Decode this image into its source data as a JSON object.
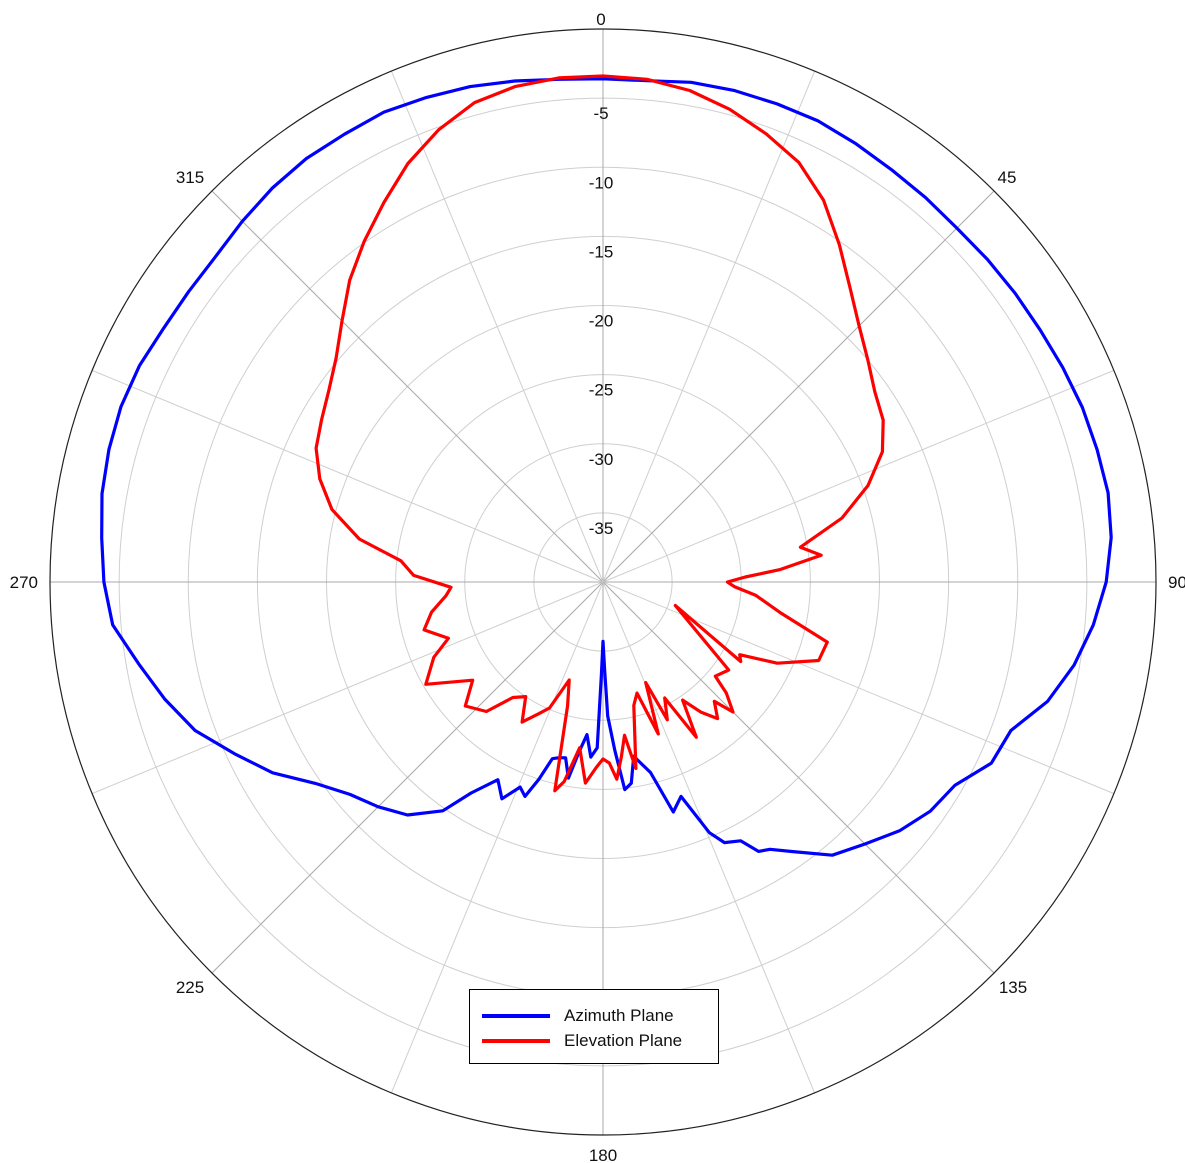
{
  "chart_data": {
    "type": "polar-line",
    "title": "",
    "radial_axis": {
      "unit": "",
      "min": -40,
      "max": 0,
      "ticks": [
        0,
        -5,
        -10,
        -15,
        -20,
        -25,
        -30,
        -35
      ],
      "tick_labels": [
        "0",
        "-5",
        "-10",
        "-15",
        "-20",
        "-25",
        "-30",
        "-35"
      ]
    },
    "angular_axis": {
      "direction": "clockwise",
      "zero_at": "top",
      "labels": [
        "0",
        "45",
        "90",
        "135",
        "180",
        "225",
        "270",
        "315"
      ],
      "angles": [
        0,
        45,
        90,
        135,
        180,
        225,
        270,
        315
      ],
      "spokes_every_deg": 22.5
    },
    "grid": true,
    "legend": {
      "position": "bottom-center",
      "entries": [
        "Azimuth Plane",
        "Elevation Plane"
      ]
    },
    "series": [
      {
        "name": "Azimuth Plane",
        "color": "#0000ff",
        "points": [
          [
            0,
            -3.6
          ],
          [
            5,
            -3.6
          ],
          [
            10,
            -3.3
          ],
          [
            15,
            -3.2
          ],
          [
            20,
            -3.2
          ],
          [
            25,
            -3.2
          ],
          [
            30,
            -3.4
          ],
          [
            35,
            -3.6
          ],
          [
            40,
            -3.7
          ],
          [
            45,
            -3.8
          ],
          [
            50,
            -3.7
          ],
          [
            55,
            -3.6
          ],
          [
            60,
            -3.5
          ],
          [
            65,
            -3.3
          ],
          [
            70,
            -3.1
          ],
          [
            75,
            -3.0
          ],
          [
            80,
            -2.9
          ],
          [
            85,
            -3.1
          ],
          [
            90,
            -3.6
          ],
          [
            95,
            -4.4
          ],
          [
            100,
            -5.4
          ],
          [
            105,
            -6.7
          ],
          [
            110,
            -8.6
          ],
          [
            115,
            -9.0
          ],
          [
            120,
            -10.6
          ],
          [
            125,
            -11.1
          ],
          [
            130,
            -12.0
          ],
          [
            135,
            -13.2
          ],
          [
            140,
            -14.2
          ],
          [
            145,
            -16.2
          ],
          [
            148,
            -17.2
          ],
          [
            150,
            -17.5
          ],
          [
            152,
            -18.8
          ],
          [
            155,
            -19.2
          ],
          [
            157,
            -20.3
          ],
          [
            160,
            -23.5
          ],
          [
            163,
            -22.6
          ],
          [
            166,
            -25.8
          ],
          [
            170,
            -27.2
          ],
          [
            172,
            -25.3
          ],
          [
            174,
            -24.9
          ],
          [
            176,
            -27.8
          ],
          [
            178,
            -30.3
          ],
          [
            179,
            -33.8
          ],
          [
            180,
            -35.7
          ],
          [
            181,
            -33.3
          ],
          [
            182,
            -28.0
          ],
          [
            184,
            -27.3
          ],
          [
            186,
            -28.9
          ],
          [
            188,
            -27.6
          ],
          [
            190,
            -25.6
          ],
          [
            192,
            -27.0
          ],
          [
            194,
            -26.9
          ],
          [
            196,
            -26.7
          ],
          [
            198,
            -25.0
          ],
          [
            200,
            -23.5
          ],
          [
            202,
            -24.0
          ],
          [
            205,
            -22.7
          ],
          [
            208,
            -23.8
          ],
          [
            212,
            -22.0
          ],
          [
            215,
            -19.8
          ],
          [
            220,
            -18.0
          ],
          [
            225,
            -17.0
          ],
          [
            230,
            -16.1
          ],
          [
            235,
            -14.6
          ],
          [
            240,
            -12.4
          ],
          [
            245,
            -10.6
          ],
          [
            250,
            -8.6
          ],
          [
            255,
            -7.2
          ],
          [
            260,
            -5.9
          ],
          [
            265,
            -4.4
          ],
          [
            270,
            -3.9
          ],
          [
            275,
            -3.6
          ],
          [
            280,
            -3.2
          ],
          [
            285,
            -3.0
          ],
          [
            290,
            -2.9
          ],
          [
            295,
            -3.0
          ],
          [
            300,
            -3.3
          ],
          [
            305,
            -3.4
          ],
          [
            310,
            -3.4
          ],
          [
            315,
            -3.1
          ],
          [
            320,
            -2.8
          ],
          [
            325,
            -2.6
          ],
          [
            330,
            -2.6
          ],
          [
            335,
            -2.5
          ],
          [
            340,
            -2.7
          ],
          [
            345,
            -2.9
          ],
          [
            350,
            -3.2
          ],
          [
            355,
            -3.5
          ],
          [
            360,
            -3.6
          ]
        ]
      },
      {
        "name": "Elevation Plane",
        "color": "#ff0000",
        "points": [
          [
            0,
            -3.4
          ],
          [
            5,
            -3.5
          ],
          [
            10,
            -3.9
          ],
          [
            15,
            -4.6
          ],
          [
            20,
            -5.5
          ],
          [
            25,
            -6.5
          ],
          [
            30,
            -8.1
          ],
          [
            35,
            -10.2
          ],
          [
            40,
            -12.2
          ],
          [
            45,
            -13.8
          ],
          [
            50,
            -15.0
          ],
          [
            55,
            -16.0
          ],
          [
            60,
            -16.6
          ],
          [
            65,
            -17.7
          ],
          [
            70,
            -19.6
          ],
          [
            75,
            -22.1
          ],
          [
            80,
            -25.5
          ],
          [
            83,
            -24.1
          ],
          [
            86,
            -27.2
          ],
          [
            88,
            -29.7
          ],
          [
            90,
            -31.0
          ],
          [
            92,
            -30.5
          ],
          [
            95,
            -28.9
          ],
          [
            100,
            -26.9
          ],
          [
            105,
            -23.2
          ],
          [
            110,
            -23.4
          ],
          [
            115,
            -26.1
          ],
          [
            118,
            -28.8
          ],
          [
            120,
            -28.5
          ],
          [
            108,
            -34.5
          ],
          [
            125,
            -28.9
          ],
          [
            130,
            -29.4
          ],
          [
            132,
            -28.0
          ],
          [
            135,
            -26.7
          ],
          [
            137,
            -28.2
          ],
          [
            140,
            -27.1
          ],
          [
            143,
            -28.2
          ],
          [
            146,
            -29.7
          ],
          [
            149,
            -26.9
          ],
          [
            152,
            -30.5
          ],
          [
            155,
            -29.0
          ],
          [
            157,
            -32.1
          ],
          [
            160,
            -28.3
          ],
          [
            163,
            -31.6
          ],
          [
            166,
            -30.8
          ],
          [
            170,
            -26.3
          ],
          [
            172,
            -28.8
          ],
          [
            174,
            -27.3
          ],
          [
            176,
            -25.7
          ],
          [
            178,
            -26.9
          ],
          [
            180,
            -27.2
          ],
          [
            182,
            -26.6
          ],
          [
            185,
            -25.4
          ],
          [
            188,
            -27.9
          ],
          [
            191,
            -25.3
          ],
          [
            193,
            -24.5
          ],
          [
            196,
            -30.7
          ],
          [
            199,
            -32.5
          ],
          [
            203,
            -30.1
          ],
          [
            206,
            -29.4
          ],
          [
            210,
            -28.3
          ],
          [
            214,
            -30.0
          ],
          [
            218,
            -29.4
          ],
          [
            222,
            -27.4
          ],
          [
            228,
            -26.6
          ],
          [
            233,
            -28.2
          ],
          [
            240,
            -25.2
          ],
          [
            246,
            -26.6
          ],
          [
            250,
            -28.1
          ],
          [
            255,
            -26.6
          ],
          [
            260,
            -27.4
          ],
          [
            265,
            -28.6
          ],
          [
            268,
            -29.0
          ],
          [
            272,
            -26.3
          ],
          [
            276,
            -25.3
          ],
          [
            280,
            -22.1
          ],
          [
            285,
            -19.7
          ],
          [
            290,
            -18.2
          ],
          [
            295,
            -17.1
          ],
          [
            300,
            -16.5
          ],
          [
            305,
            -15.8
          ],
          [
            310,
            -14.8
          ],
          [
            315,
            -13.3
          ],
          [
            320,
            -11.5
          ],
          [
            325,
            -9.9
          ],
          [
            330,
            -8.3
          ],
          [
            335,
            -6.6
          ],
          [
            340,
            -5.2
          ],
          [
            345,
            -4.1
          ],
          [
            350,
            -3.6
          ],
          [
            355,
            -3.4
          ],
          [
            360,
            -3.4
          ]
        ]
      }
    ]
  }
}
